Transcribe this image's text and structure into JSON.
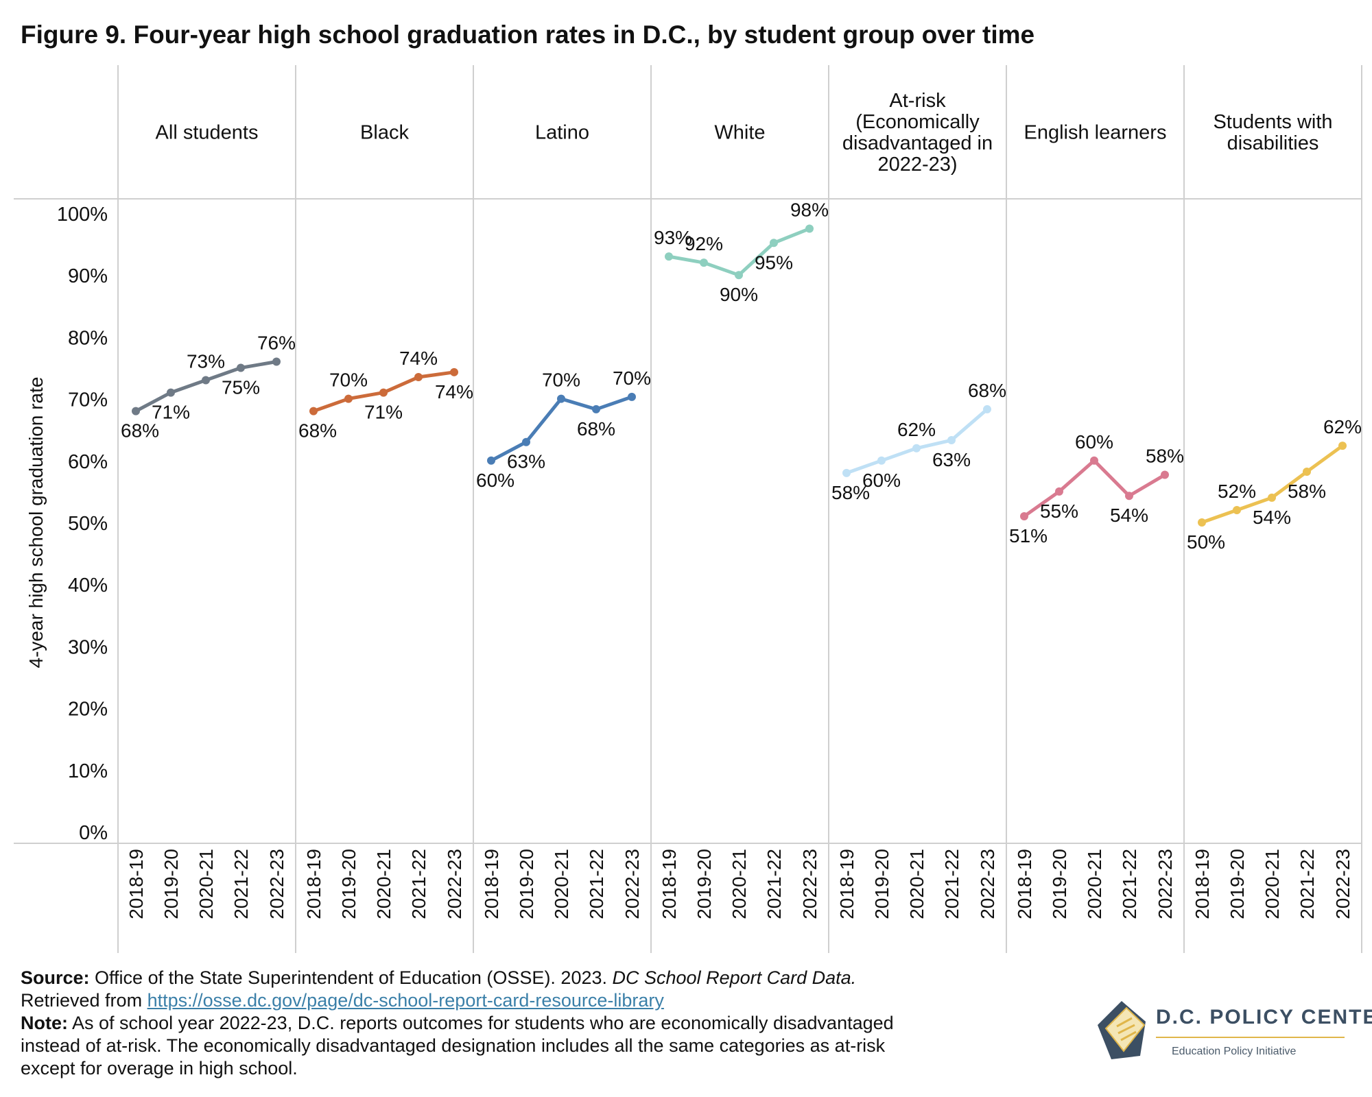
{
  "title": "Figure 9. Four-year high school graduation rates in D.C., by student group over time",
  "chart_data": {
    "type": "line",
    "ylabel": "4-year high school graduation rate",
    "ylim": [
      0,
      100
    ],
    "yticks": [
      "0%",
      "10%",
      "20%",
      "30%",
      "40%",
      "50%",
      "60%",
      "70%",
      "80%",
      "90%",
      "100%"
    ],
    "categories": [
      "2018-19",
      "2019-20",
      "2020-21",
      "2021-22",
      "2022-23"
    ],
    "grid": false,
    "panels": [
      {
        "header": [
          "All students"
        ],
        "color": "#6f7a86",
        "values": [
          68,
          71,
          73,
          75,
          76
        ],
        "labels": [
          "68%",
          "71%",
          "73%",
          "75%",
          "76%"
        ],
        "label_pos": [
          "below",
          "below",
          "above",
          "below",
          "above"
        ]
      },
      {
        "header": [
          "Black"
        ],
        "color": "#cc6b3a",
        "values": [
          68,
          70,
          71,
          73.5,
          74.3
        ],
        "labels": [
          "68%",
          "70%",
          "71%",
          "74%",
          "74%"
        ],
        "label_pos": [
          "below",
          "above",
          "below",
          "above",
          "below"
        ]
      },
      {
        "header": [
          "Latino"
        ],
        "color": "#4a7db5",
        "values": [
          60,
          63,
          70,
          68.3,
          70.3
        ],
        "labels": [
          "60%",
          "63%",
          "70%",
          "68%",
          "70%"
        ],
        "label_pos": [
          "below",
          "below",
          "above",
          "below",
          "above"
        ]
      },
      {
        "header": [
          "White"
        ],
        "color": "#8ecfbf",
        "values": [
          93,
          92,
          90,
          95.2,
          97.5
        ],
        "labels": [
          "93%",
          "92%",
          "90%",
          "95%",
          "98%"
        ],
        "label_pos": [
          "above",
          "above",
          "below",
          "below",
          "above"
        ]
      },
      {
        "header": [
          "At-risk",
          "(Economically",
          "disadvantaged in",
          "2022-23)"
        ],
        "color": "#bfe0f5",
        "values": [
          58,
          60,
          62,
          63.3,
          68.3
        ],
        "labels": [
          "58%",
          "60%",
          "62%",
          "63%",
          "68%"
        ],
        "label_pos": [
          "below",
          "below",
          "above",
          "below",
          "above"
        ]
      },
      {
        "header": [
          "English learners"
        ],
        "color": "#d97a90",
        "values": [
          51,
          55,
          60,
          54.3,
          57.7
        ],
        "labels": [
          "51%",
          "55%",
          "60%",
          "54%",
          "58%"
        ],
        "label_pos": [
          "below",
          "below",
          "above",
          "below",
          "above"
        ]
      },
      {
        "header": [
          "Students with",
          "disabilities"
        ],
        "color": "#ecc152",
        "values": [
          50,
          52,
          54,
          58.2,
          62.4
        ],
        "labels": [
          "50%",
          "52%",
          "54%",
          "58%",
          "62%"
        ],
        "label_pos": [
          "below",
          "above",
          "below",
          "below",
          "above"
        ]
      }
    ]
  },
  "footer": {
    "source_label": "Source:",
    "source_text": " Office of the State Superintendent of Education (OSSE). 2023. ",
    "source_italic": "DC School Report Card Data.",
    "retrieved_text": "Retrieved from ",
    "url": "https://osse.dc.gov/page/dc-school-report-card-resource-library",
    "note_label": "Note:",
    "note_line1": " As of school year 2022-23, D.C. reports outcomes for students who are economically disadvantaged",
    "note_line2": "instead of at-risk. The economically disadvantaged designation includes all the same categories as at-risk",
    "note_line3": "except for overage in high school."
  },
  "logo": {
    "name": "D.C. POLICY CENTER",
    "subtitle": "Education Policy Initiative",
    "colors": {
      "navy": "#3c4f63",
      "gold": "#e0b64a"
    }
  }
}
